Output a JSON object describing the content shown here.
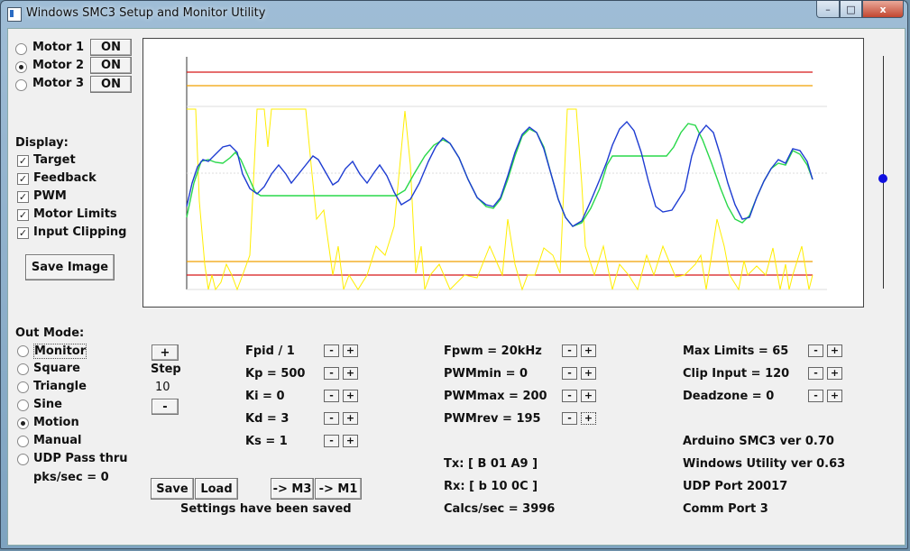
{
  "window": {
    "title": "Windows SMC3 Setup and Monitor Utility",
    "buttons": {
      "minimize": "–",
      "maximize": "□",
      "close": "x"
    }
  },
  "motors": [
    {
      "label": "Motor 1",
      "button": "ON",
      "selected": false
    },
    {
      "label": "Motor 2",
      "button": "ON",
      "selected": true
    },
    {
      "label": "Motor 3",
      "button": "ON",
      "selected": false
    }
  ],
  "display": {
    "heading": "Display:",
    "options": [
      {
        "label": "Target",
        "checked": true
      },
      {
        "label": "Feedback",
        "checked": true
      },
      {
        "label": "PWM",
        "checked": true
      },
      {
        "label": "Motor Limits",
        "checked": true
      },
      {
        "label": "Input Clipping",
        "checked": true
      }
    ],
    "save_image": "Save Image"
  },
  "out_mode": {
    "heading": "Out Mode:",
    "options": [
      {
        "label": "Monitor",
        "selected": false
      },
      {
        "label": "Square",
        "selected": false
      },
      {
        "label": "Triangle",
        "selected": false
      },
      {
        "label": "Sine",
        "selected": false
      },
      {
        "label": "Motion",
        "selected": true
      },
      {
        "label": "Manual",
        "selected": false
      },
      {
        "label": "UDP Pass thru",
        "selected": false
      }
    ],
    "pks": "pks/sec = 0"
  },
  "step": {
    "plus": "+",
    "label": "Step",
    "value": "10",
    "minus": "-"
  },
  "pid": [
    {
      "label": "Fpid / 1"
    },
    {
      "label": "Kp = 500"
    },
    {
      "label": "Ki = 0"
    },
    {
      "label": "Kd = 3"
    },
    {
      "label": "Ks = 1"
    }
  ],
  "pwm": [
    {
      "label": "Fpwm = 20kHz"
    },
    {
      "label": "PWMmin = 0"
    },
    {
      "label": "PWMmax = 200"
    },
    {
      "label": "PWMrev = 195"
    }
  ],
  "limits": [
    {
      "label": "Max Limits = 65"
    },
    {
      "label": "Clip Input = 120"
    },
    {
      "label": "Deadzone = 0"
    }
  ],
  "spin": {
    "minus": "-",
    "plus": "+"
  },
  "comm": {
    "tx": "Tx: [ B 01 A9 ]",
    "rx": "Rx: [ b 10 0C ]",
    "calcs": "Calcs/sec = 3996"
  },
  "info": {
    "arduino": "Arduino SMC3 ver 0.70",
    "utility": "Windows Utility ver 0.63",
    "udp": "UDP Port 20017",
    "comm_port": "Comm Port 3"
  },
  "footer": {
    "save": "Save",
    "load": "Load",
    "to_m3": "-> M3",
    "to_m1": "-> M1",
    "status": "Settings have been saved"
  },
  "colors": {
    "target": "#1e3cd2",
    "feedback": "#29d84a",
    "pwm": "#ffee00",
    "limit": "#d81818",
    "clip": "#f0a000",
    "slider": "#1010e0"
  },
  "slider": {
    "level": 0.5
  }
}
